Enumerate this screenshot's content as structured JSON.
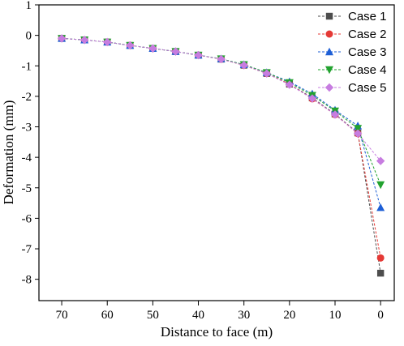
{
  "chart_data": {
    "type": "line",
    "title": "",
    "xlabel": "Distance to  face (m)",
    "ylabel": "Deformation (mm)",
    "xlim": [
      75,
      -3
    ],
    "ylim": [
      -8.7,
      1
    ],
    "xticks": [
      70,
      60,
      50,
      40,
      30,
      20,
      10,
      0
    ],
    "yticks": [
      1,
      0,
      -1,
      -2,
      -3,
      -4,
      -5,
      -6,
      -7,
      -8
    ],
    "legend": "top-right",
    "x": [
      70,
      65,
      60,
      55,
      50,
      45,
      40,
      35,
      30,
      25,
      20,
      15,
      10,
      5,
      0
    ],
    "series": [
      {
        "name": "Case 1",
        "color": "#4d4d4d",
        "marker": "square",
        "values": [
          -0.1,
          -0.15,
          -0.22,
          -0.33,
          -0.43,
          -0.53,
          -0.65,
          -0.78,
          -0.98,
          -1.25,
          -1.6,
          -2.05,
          -2.58,
          -3.2,
          -7.8
        ]
      },
      {
        "name": "Case 2",
        "color": "#e53935",
        "marker": "circle",
        "values": [
          -0.1,
          -0.15,
          -0.22,
          -0.33,
          -0.43,
          -0.53,
          -0.65,
          -0.78,
          -0.98,
          -1.25,
          -1.6,
          -2.08,
          -2.6,
          -3.22,
          -7.3
        ]
      },
      {
        "name": "Case 3",
        "color": "#1e5fd6",
        "marker": "triangle-up",
        "values": [
          -0.1,
          -0.15,
          -0.22,
          -0.33,
          -0.43,
          -0.53,
          -0.65,
          -0.77,
          -0.96,
          -1.22,
          -1.52,
          -1.92,
          -2.45,
          -2.97,
          -5.65
        ]
      },
      {
        "name": "Case 4",
        "color": "#22a22f",
        "marker": "triangle-down",
        "values": [
          -0.1,
          -0.15,
          -0.22,
          -0.33,
          -0.43,
          -0.53,
          -0.65,
          -0.77,
          -0.96,
          -1.22,
          -1.55,
          -1.97,
          -2.48,
          -3.05,
          -4.9
        ]
      },
      {
        "name": "Case 5",
        "color": "#c77de0",
        "marker": "diamond",
        "values": [
          -0.1,
          -0.15,
          -0.22,
          -0.33,
          -0.43,
          -0.53,
          -0.65,
          -0.78,
          -0.98,
          -1.25,
          -1.62,
          -2.07,
          -2.6,
          -3.22,
          -4.12
        ]
      }
    ]
  }
}
